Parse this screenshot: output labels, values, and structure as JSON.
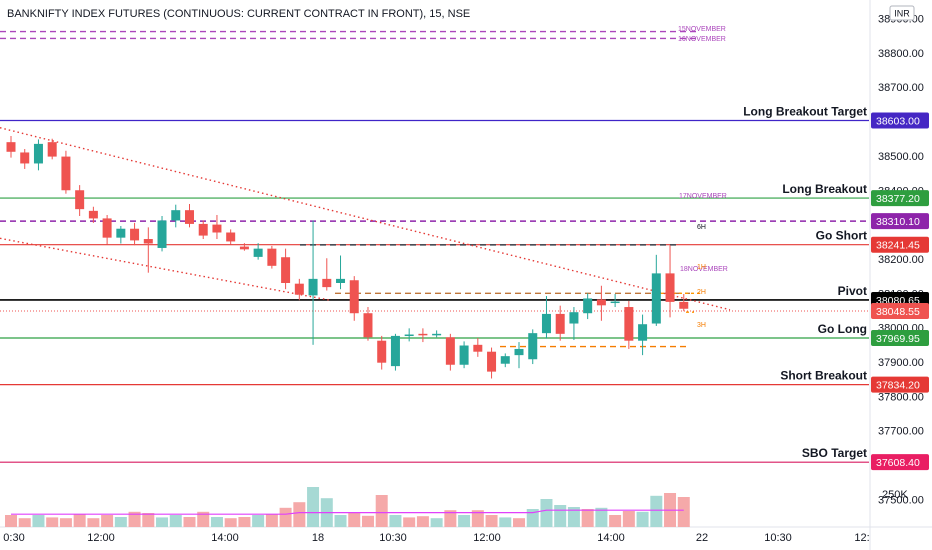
{
  "header": {
    "title": "BANKNIFTY INDEX FUTURES (CONTINUOUS: CURRENT CONTRACT IN FRONT), 15, NSE",
    "currency": "INR"
  },
  "time_axis": [
    "0:30",
    "12:00",
    "14:00",
    "18",
    "10:30",
    "12:00",
    "14:00",
    "22",
    "10:30",
    "12:"
  ],
  "volume_axis_label": "250K",
  "levels": [
    {
      "key": "lbt",
      "label": "Long Breakout Target",
      "value": 38603.0,
      "value_text": "38603.00",
      "color": "#3f25c8",
      "tag_color": "#4527c4",
      "style": "solid"
    },
    {
      "key": "lb",
      "label": "Long Breakout",
      "value": 38377.2,
      "value_text": "38377.20",
      "color": "#2ea043",
      "tag_color": "#2e9e3f",
      "style": "solid"
    },
    {
      "key": "nov17",
      "label": "",
      "value": 38310.1,
      "value_text": "38310.10",
      "color": "#8e24aa",
      "tag_color": "#8e24aa",
      "style": "dashed"
    },
    {
      "key": "gs",
      "label": "Go Short",
      "value": 38241.45,
      "value_text": "38241.45",
      "color": "#e53935",
      "tag_color": "#e53935",
      "style": "solid"
    },
    {
      "key": "pivot",
      "label": "Pivot",
      "value": 38080.65,
      "value_text": "38080.65",
      "color": "#000000",
      "tag_color": "#000000",
      "style": "solid"
    },
    {
      "key": "last",
      "label": "",
      "value": 38048.55,
      "value_text": "38048.55",
      "color": "#ef5350",
      "tag_color": "#ef5350",
      "style": "dotted"
    },
    {
      "key": "gl",
      "label": "Go Long",
      "value": 37969.95,
      "value_text": "37969.95",
      "color": "#2ea043",
      "tag_color": "#2e9e3f",
      "style": "solid"
    },
    {
      "key": "sb",
      "label": "Short Breakout",
      "value": 37834.2,
      "value_text": "37834.20",
      "color": "#e53935",
      "tag_color": "#e53935",
      "style": "solid"
    },
    {
      "key": "sbot",
      "label": "SBO Target",
      "value": 37608.4,
      "value_text": "37608.40",
      "color": "#d81b60",
      "tag_color": "#e91e63",
      "style": "solid"
    }
  ],
  "annotations": {
    "nov15": "15NOVEMBER",
    "nov16": "16NOVEMBER",
    "nov17": "17NOVEMBER",
    "nov18": "18NOVEMBER",
    "h6": "6H",
    "h3": "3H",
    "h2": "2H",
    "h1": "1H"
  },
  "chart_data": {
    "type": "candlestick",
    "symbol": "BANKNIFTY INDEX FUTURES (CONTINUOUS: CURRENT CONTRACT IN FRONT)",
    "interval": "15",
    "exchange": "NSE",
    "currency": "INR",
    "y_ticks": [
      38900,
      38800,
      38700,
      38600,
      38500,
      38400,
      38300,
      38200,
      38100,
      38000,
      37900,
      37800,
      37700,
      37600,
      37500
    ],
    "ylim": [
      37450,
      38950
    ],
    "x_tick_labels": [
      "0:30",
      "12:00",
      "14:00",
      "18",
      "10:30",
      "12:00",
      "14:00",
      "22",
      "10:30",
      "12:"
    ],
    "candles": [
      {
        "o": 38540,
        "h": 38558,
        "l": 38495,
        "c": 38512
      },
      {
        "o": 38510,
        "h": 38520,
        "l": 38462,
        "c": 38478
      },
      {
        "o": 38478,
        "h": 38548,
        "l": 38458,
        "c": 38535
      },
      {
        "o": 38540,
        "h": 38550,
        "l": 38490,
        "c": 38498
      },
      {
        "o": 38498,
        "h": 38515,
        "l": 38390,
        "c": 38400
      },
      {
        "o": 38400,
        "h": 38415,
        "l": 38325,
        "c": 38345
      },
      {
        "o": 38340,
        "h": 38352,
        "l": 38305,
        "c": 38318
      },
      {
        "o": 38318,
        "h": 38328,
        "l": 38242,
        "c": 38262
      },
      {
        "o": 38262,
        "h": 38296,
        "l": 38245,
        "c": 38288
      },
      {
        "o": 38288,
        "h": 38305,
        "l": 38240,
        "c": 38254
      },
      {
        "o": 38258,
        "h": 38292,
        "l": 38160,
        "c": 38245
      },
      {
        "o": 38232,
        "h": 38325,
        "l": 38222,
        "c": 38312
      },
      {
        "o": 38312,
        "h": 38358,
        "l": 38292,
        "c": 38342
      },
      {
        "o": 38342,
        "h": 38360,
        "l": 38292,
        "c": 38302
      },
      {
        "o": 38302,
        "h": 38312,
        "l": 38258,
        "c": 38268
      },
      {
        "o": 38300,
        "h": 38328,
        "l": 38258,
        "c": 38277
      },
      {
        "o": 38277,
        "h": 38286,
        "l": 38242,
        "c": 38251
      },
      {
        "o": 38236,
        "h": 38246,
        "l": 38224,
        "c": 38228
      },
      {
        "o": 38206,
        "h": 38246,
        "l": 38198,
        "c": 38230
      },
      {
        "o": 38230,
        "h": 38238,
        "l": 38172,
        "c": 38180
      },
      {
        "o": 38205,
        "h": 38230,
        "l": 38112,
        "c": 38130
      },
      {
        "o": 38128,
        "h": 38142,
        "l": 38080,
        "c": 38096
      },
      {
        "o": 38094,
        "h": 38312,
        "l": 37950,
        "c": 38142
      },
      {
        "o": 38142,
        "h": 38202,
        "l": 38108,
        "c": 38118
      },
      {
        "o": 38130,
        "h": 38210,
        "l": 38112,
        "c": 38142
      },
      {
        "o": 38138,
        "h": 38150,
        "l": 38020,
        "c": 38042
      },
      {
        "o": 38042,
        "h": 38060,
        "l": 37962,
        "c": 37972
      },
      {
        "o": 37962,
        "h": 37976,
        "l": 37878,
        "c": 37898
      },
      {
        "o": 37888,
        "h": 37982,
        "l": 37875,
        "c": 37976
      },
      {
        "o": 37978,
        "h": 37998,
        "l": 37960,
        "c": 37980
      },
      {
        "o": 37982,
        "h": 37998,
        "l": 37958,
        "c": 37978
      },
      {
        "o": 37980,
        "h": 37992,
        "l": 37972,
        "c": 37982
      },
      {
        "o": 37972,
        "h": 37982,
        "l": 37875,
        "c": 37892
      },
      {
        "o": 37892,
        "h": 37960,
        "l": 37882,
        "c": 37948
      },
      {
        "o": 37950,
        "h": 37970,
        "l": 37915,
        "c": 37930
      },
      {
        "o": 37930,
        "h": 37942,
        "l": 37852,
        "c": 37872
      },
      {
        "o": 37895,
        "h": 37925,
        "l": 37885,
        "c": 37917
      },
      {
        "o": 37920,
        "h": 37958,
        "l": 37882,
        "c": 37938
      },
      {
        "o": 37908,
        "h": 37995,
        "l": 37894,
        "c": 37984
      },
      {
        "o": 37984,
        "h": 38092,
        "l": 37968,
        "c": 38040
      },
      {
        "o": 38040,
        "h": 38064,
        "l": 37962,
        "c": 37982
      },
      {
        "o": 38012,
        "h": 38060,
        "l": 37964,
        "c": 38045
      },
      {
        "o": 38042,
        "h": 38100,
        "l": 38025,
        "c": 38085
      },
      {
        "o": 38082,
        "h": 38122,
        "l": 38020,
        "c": 38065
      },
      {
        "o": 38076,
        "h": 38098,
        "l": 38060,
        "c": 38076
      },
      {
        "o": 38060,
        "h": 38078,
        "l": 37938,
        "c": 37962
      },
      {
        "o": 37962,
        "h": 38038,
        "l": 37920,
        "c": 38010
      },
      {
        "o": 38012,
        "h": 38212,
        "l": 38005,
        "c": 38158
      },
      {
        "o": 38158,
        "h": 38240,
        "l": 38030,
        "c": 38075
      },
      {
        "o": 38075,
        "h": 38098,
        "l": 38048,
        "c": 38055
      }
    ],
    "volume": [
      {
        "v": 0.3,
        "up": false
      },
      {
        "v": 0.22,
        "up": false
      },
      {
        "v": 0.3,
        "up": true
      },
      {
        "v": 0.24,
        "up": false
      },
      {
        "v": 0.22,
        "up": false
      },
      {
        "v": 0.32,
        "up": false
      },
      {
        "v": 0.22,
        "up": false
      },
      {
        "v": 0.3,
        "up": false
      },
      {
        "v": 0.25,
        "up": true
      },
      {
        "v": 0.38,
        "up": false
      },
      {
        "v": 0.35,
        "up": false
      },
      {
        "v": 0.24,
        "up": true
      },
      {
        "v": 0.3,
        "up": true
      },
      {
        "v": 0.25,
        "up": false
      },
      {
        "v": 0.38,
        "up": false
      },
      {
        "v": 0.25,
        "up": true
      },
      {
        "v": 0.22,
        "up": false
      },
      {
        "v": 0.25,
        "up": false
      },
      {
        "v": 0.3,
        "up": true
      },
      {
        "v": 0.32,
        "up": false
      },
      {
        "v": 0.48,
        "up": false
      },
      {
        "v": 0.62,
        "up": false
      },
      {
        "v": 1.0,
        "up": true
      },
      {
        "v": 0.72,
        "up": true
      },
      {
        "v": 0.3,
        "up": true
      },
      {
        "v": 0.35,
        "up": false
      },
      {
        "v": 0.28,
        "up": false
      },
      {
        "v": 0.8,
        "up": false
      },
      {
        "v": 0.3,
        "up": true
      },
      {
        "v": 0.24,
        "up": false
      },
      {
        "v": 0.27,
        "up": false
      },
      {
        "v": 0.22,
        "up": true
      },
      {
        "v": 0.42,
        "up": false
      },
      {
        "v": 0.3,
        "up": true
      },
      {
        "v": 0.42,
        "up": false
      },
      {
        "v": 0.3,
        "up": false
      },
      {
        "v": 0.24,
        "up": true
      },
      {
        "v": 0.22,
        "up": false
      },
      {
        "v": 0.45,
        "up": true
      },
      {
        "v": 0.7,
        "up": true
      },
      {
        "v": 0.55,
        "up": true
      },
      {
        "v": 0.5,
        "up": true
      },
      {
        "v": 0.45,
        "up": false
      },
      {
        "v": 0.48,
        "up": true
      },
      {
        "v": 0.3,
        "up": false
      },
      {
        "v": 0.4,
        "up": false
      },
      {
        "v": 0.38,
        "up": true
      },
      {
        "v": 0.78,
        "up": true
      },
      {
        "v": 0.85,
        "up": false
      },
      {
        "v": 0.75,
        "up": false
      }
    ]
  }
}
